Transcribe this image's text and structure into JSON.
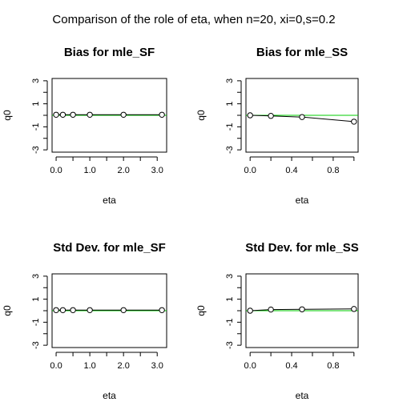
{
  "figure": {
    "title": "Comparison of the role of eta, when n=20, xi=0,s=0.2"
  },
  "colors": {
    "reference_line": "#00cc00",
    "series_line": "#000000",
    "axes": "#000000"
  },
  "chart_data": [
    {
      "type": "line",
      "title": "Bias for mle_SF",
      "xlabel": "eta",
      "ylabel": "q0",
      "xlim": [
        -0.12,
        3.28
      ],
      "ylim": [
        -3.2,
        3.2
      ],
      "x_ticks": [
        0.0,
        0.5,
        1.0,
        1.5,
        2.0,
        2.5,
        3.0
      ],
      "x_tick_labels": [
        "0.0",
        "",
        "1.0",
        "",
        "2.0",
        "",
        "3.0"
      ],
      "y_ticks": [
        -3,
        -2,
        -1,
        0,
        1,
        2,
        3
      ],
      "y_tick_labels": [
        "-3",
        "",
        "-1",
        "",
        "1",
        "",
        "3"
      ],
      "reference_y": 0,
      "series": [
        {
          "x": [
            0,
            0.2,
            0.5,
            1.0,
            2.0,
            3.14
          ],
          "y": [
            0.05,
            0.05,
            0.05,
            0.05,
            0.05,
            0.05
          ]
        }
      ],
      "grid": false
    },
    {
      "type": "line",
      "title": "Bias for mle_SS",
      "xlabel": "eta",
      "ylabel": "q0",
      "xlim": [
        -0.04,
        1.04
      ],
      "ylim": [
        -3.2,
        3.2
      ],
      "x_ticks": [
        0.0,
        0.2,
        0.4,
        0.6,
        0.8,
        1.0
      ],
      "x_tick_labels": [
        "0.0",
        "",
        "0.4",
        "",
        "0.8",
        ""
      ],
      "y_ticks": [
        -3,
        -2,
        -1,
        0,
        1,
        2,
        3
      ],
      "y_tick_labels": [
        "-3",
        "",
        "-1",
        "",
        "1",
        "",
        "3"
      ],
      "reference_y": 0,
      "series": [
        {
          "x": [
            0,
            0.2,
            0.5,
            1.0
          ],
          "y": [
            0.0,
            -0.05,
            -0.15,
            -0.55
          ]
        }
      ],
      "grid": false
    },
    {
      "type": "line",
      "title": "Std Dev. for mle_SF",
      "xlabel": "eta",
      "ylabel": "q0",
      "xlim": [
        -0.12,
        3.28
      ],
      "ylim": [
        -3.2,
        3.2
      ],
      "x_ticks": [
        0.0,
        0.5,
        1.0,
        1.5,
        2.0,
        2.5,
        3.0
      ],
      "x_tick_labels": [
        "0.0",
        "",
        "1.0",
        "",
        "2.0",
        "",
        "3.0"
      ],
      "y_ticks": [
        -3,
        -2,
        -1,
        0,
        1,
        2,
        3
      ],
      "y_tick_labels": [
        "-3",
        "",
        "-1",
        "",
        "1",
        "",
        "3"
      ],
      "reference_y": 0,
      "series": [
        {
          "x": [
            0,
            0.2,
            0.5,
            1.0,
            2.0,
            3.14
          ],
          "y": [
            0.05,
            0.05,
            0.05,
            0.05,
            0.05,
            0.05
          ]
        }
      ],
      "grid": false
    },
    {
      "type": "line",
      "title": "Std Dev. for mle_SS",
      "xlabel": "eta",
      "ylabel": "q0",
      "xlim": [
        -0.04,
        1.04
      ],
      "ylim": [
        -3.2,
        3.2
      ],
      "x_ticks": [
        0.0,
        0.2,
        0.4,
        0.6,
        0.8,
        1.0
      ],
      "x_tick_labels": [
        "0.0",
        "",
        "0.4",
        "",
        "0.8",
        ""
      ],
      "y_ticks": [
        -3,
        -2,
        -1,
        0,
        1,
        2,
        3
      ],
      "y_tick_labels": [
        "-3",
        "",
        "-1",
        "",
        "1",
        "",
        "3"
      ],
      "reference_y": 0,
      "series": [
        {
          "x": [
            0,
            0.2,
            0.5,
            1.0
          ],
          "y": [
            0.0,
            0.1,
            0.12,
            0.15
          ]
        }
      ],
      "grid": false
    }
  ]
}
